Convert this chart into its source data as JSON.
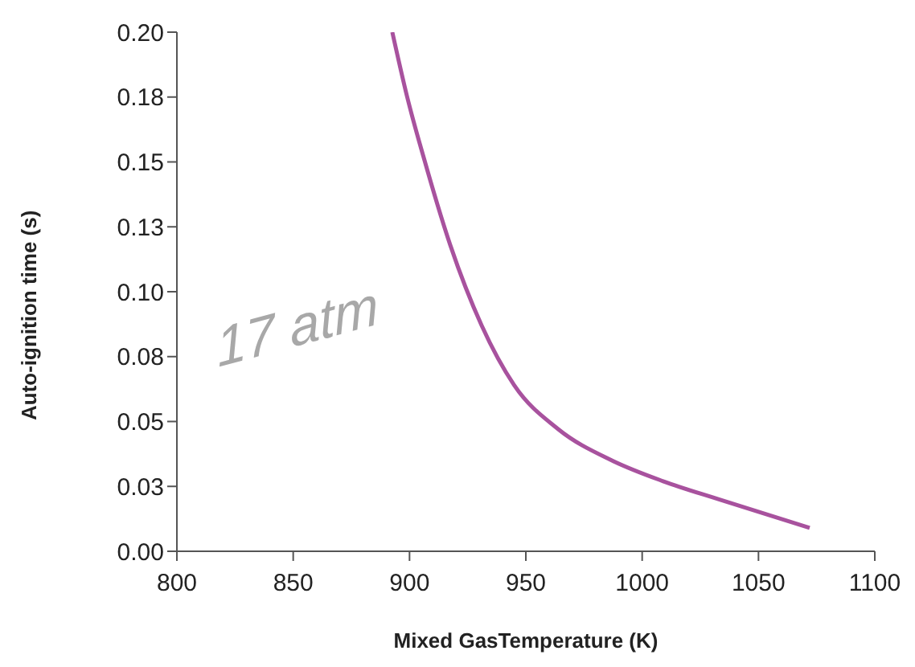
{
  "chart_data": {
    "type": "line",
    "xlabel": "Mixed GasTemperature (K)",
    "ylabel": "Auto-ignition time (s)",
    "annotations": [
      "17 atm"
    ],
    "x": [
      892.6,
      899,
      906,
      917.5,
      931,
      945,
      964,
      987,
      1009,
      1033,
      1072
    ],
    "series": [
      {
        "color": "#a8529e",
        "values": [
          0.2,
          0.175,
          0.152,
          0.118,
          0.087,
          0.064,
          0.047,
          0.035,
          0.027,
          0.02,
          0.009
        ]
      }
    ],
    "xlim": [
      800,
      1100
    ],
    "xticks": [
      800,
      850,
      900,
      950,
      1000,
      1050,
      1100
    ],
    "ylim": [
      0,
      0.2
    ],
    "yticks": [
      {
        "value": 0,
        "label": "0.00"
      },
      {
        "value": 0.025,
        "label": "0.03"
      },
      {
        "value": 0.05,
        "label": "0.05"
      },
      {
        "value": 0.075,
        "label": "0.08"
      },
      {
        "value": 0.1,
        "label": "0.10"
      },
      {
        "value": 0.125,
        "label": "0.13"
      },
      {
        "value": 0.15,
        "label": "0.15"
      },
      {
        "value": 0.175,
        "label": "0.18"
      },
      {
        "value": 0.2,
        "label": "0.20"
      }
    ],
    "grid": false,
    "legend": false,
    "marker": "none",
    "line_style": "solid"
  }
}
